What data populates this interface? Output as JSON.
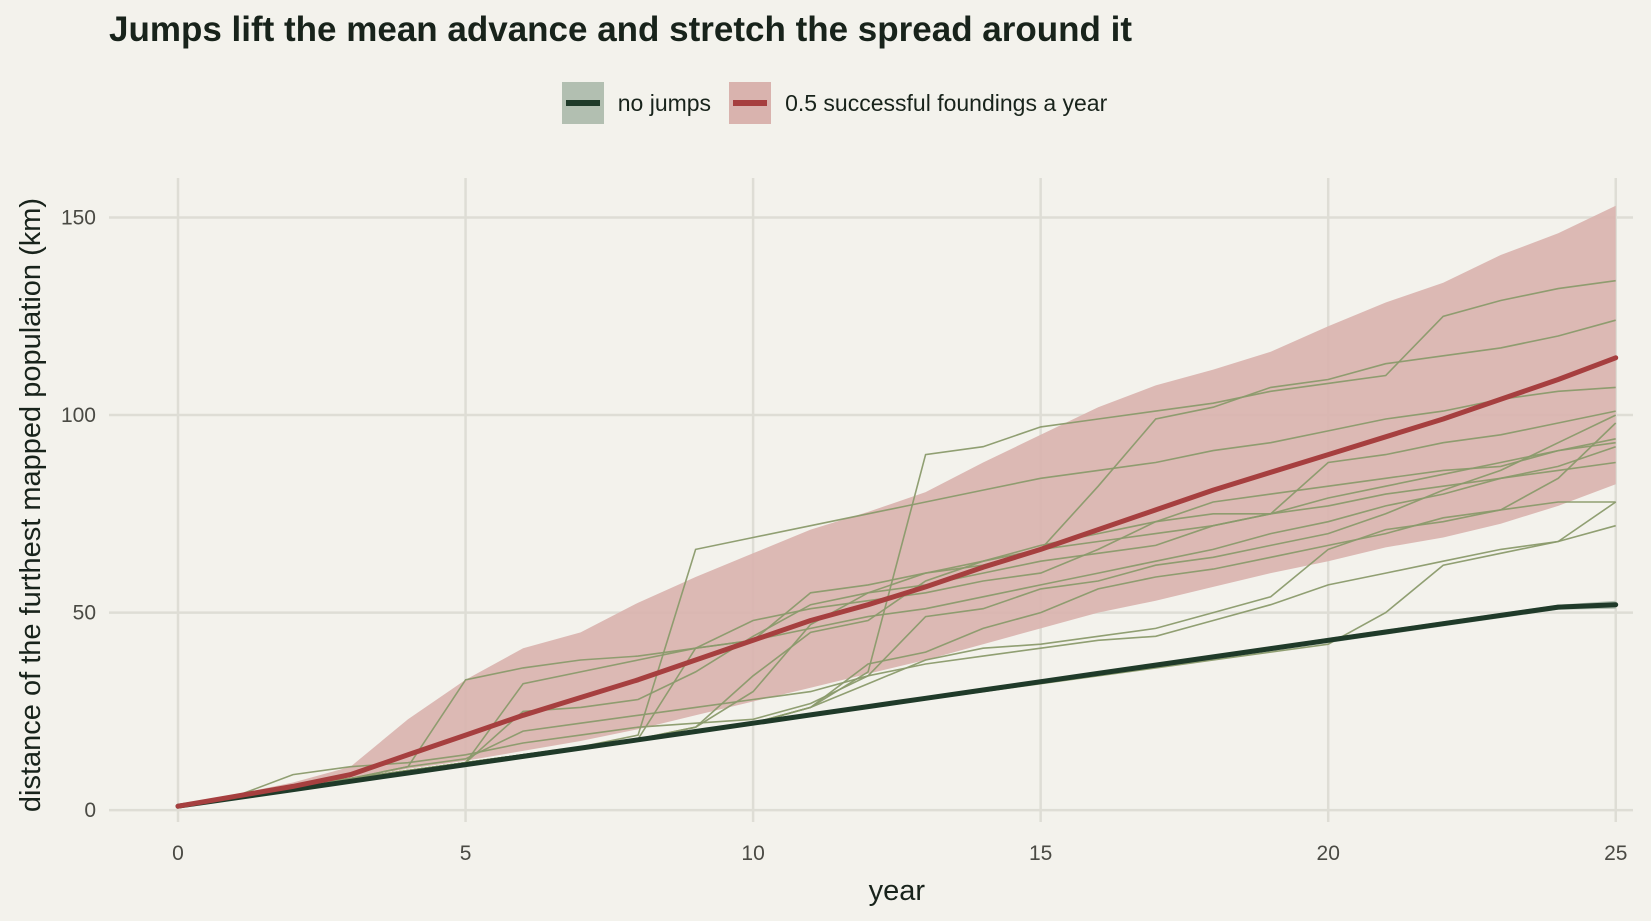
{
  "chart_data": {
    "type": "line",
    "title": "Jumps lift the mean advance and stretch the spread around it",
    "xlabel": "year",
    "ylabel": "distance of the furthest mapped population (km)",
    "xlim": [
      -1.2,
      25.3
    ],
    "ylim": [
      -3,
      160
    ],
    "xticks": [
      "0",
      "5",
      "10",
      "15",
      "20",
      "25"
    ],
    "yticks": [
      "0",
      "50",
      "100",
      "150"
    ],
    "grid": true,
    "legend_position": "top-center",
    "colors": {
      "background": "#f3f2ec",
      "grid": "#deddd5",
      "no_jumps": "#1f3a29",
      "no_jumps_band": "#b2bfb1",
      "jumps": "#a63f3f",
      "jumps_band": "#d9b3ae",
      "runs": "#8a9a6c",
      "text": "#18231b",
      "tick_text": "#4a4a44"
    },
    "legend": [
      {
        "label": "no jumps",
        "color": "#1f3a29",
        "band_color": "#b2bfb1"
      },
      {
        "label": "0.5 successful foundings a year",
        "color": "#a63f3f",
        "band_color": "#d9b3ae"
      }
    ],
    "series": [
      {
        "name": "no jumps",
        "x": [
          0,
          1,
          2,
          3,
          4,
          5,
          6,
          7,
          8,
          9,
          10,
          11,
          12,
          13,
          14,
          15,
          16,
          17,
          18,
          19,
          20,
          21,
          22,
          23,
          24,
          25
        ],
        "values": [
          1,
          3.1,
          5.2,
          7.3,
          9.4,
          11.5,
          13.6,
          15.7,
          17.8,
          19.9,
          22,
          24.1,
          26.2,
          28.3,
          30.4,
          32.5,
          34.6,
          36.7,
          38.8,
          40.9,
          43,
          45.1,
          47.2,
          49.3,
          51.4,
          52
        ],
        "band_low": [
          1,
          3,
          5,
          7,
          9,
          11,
          13.1,
          15.2,
          17.3,
          19.4,
          21.5,
          23.6,
          25.7,
          27.8,
          29.9,
          31.9,
          34,
          36.1,
          38.2,
          40.3,
          42.3,
          44.4,
          46.5,
          48.6,
          50.7,
          51
        ],
        "band_high": [
          1,
          3.2,
          5.4,
          7.6,
          9.8,
          12,
          14.1,
          16.2,
          18.3,
          20.4,
          22.5,
          24.6,
          26.7,
          28.8,
          30.9,
          33,
          35.1,
          37.2,
          39.3,
          41.4,
          43.6,
          45.7,
          47.8,
          49.9,
          52,
          53
        ]
      },
      {
        "name": "0.5 successful foundings a year",
        "x": [
          0,
          1,
          2,
          3,
          4,
          5,
          6,
          7,
          8,
          9,
          10,
          11,
          12,
          13,
          14,
          15,
          16,
          17,
          18,
          19,
          20,
          21,
          22,
          23,
          24,
          25
        ],
        "values": [
          1,
          3.5,
          6,
          9,
          14,
          19,
          24,
          28.5,
          33,
          38,
          43,
          48,
          52,
          56.5,
          61.5,
          66,
          71,
          76,
          81,
          85.5,
          90,
          94.5,
          99,
          104,
          109,
          114.5
        ],
        "band_low": [
          1,
          3.2,
          5.5,
          8,
          10.5,
          12.5,
          15,
          17.5,
          20.5,
          24,
          27.5,
          31,
          34.5,
          38,
          42,
          46,
          50,
          53,
          56.5,
          60,
          63,
          66.5,
          69,
          72.5,
          77,
          82.5
        ],
        "band_high": [
          1,
          4,
          7,
          11,
          23,
          33,
          41,
          45,
          52.5,
          59,
          65,
          71,
          75.5,
          80.5,
          88,
          95,
          102,
          107.5,
          111.5,
          116,
          122.5,
          128.5,
          133.5,
          140.5,
          146,
          153
        ]
      }
    ],
    "runs": [
      [
        1,
        3.5,
        9,
        11,
        12,
        14,
        17,
        19,
        21,
        22,
        23,
        27,
        34,
        49,
        51,
        56,
        58,
        62,
        64,
        67,
        70,
        75,
        81,
        86,
        93,
        100
      ],
      [
        1,
        3.5,
        6,
        8,
        11,
        33,
        36,
        38,
        39,
        41,
        43,
        46,
        49,
        51,
        54,
        57,
        60,
        63,
        66,
        70,
        73,
        77,
        80,
        84,
        87,
        92
      ],
      [
        1,
        3.5,
        6,
        8,
        11,
        13,
        20,
        22,
        24,
        26,
        28,
        30,
        34,
        37,
        39,
        41,
        43,
        44,
        48,
        52,
        57,
        60,
        63,
        66,
        68,
        78
      ],
      [
        1,
        3.5,
        6,
        8,
        10,
        12,
        14,
        16,
        19,
        66,
        69,
        72,
        75,
        78,
        81,
        84,
        86,
        88,
        91,
        93,
        96,
        99,
        101,
        104,
        106,
        107
      ],
      [
        1,
        3.5,
        6,
        8,
        10,
        12,
        14,
        16,
        18,
        20,
        22,
        26,
        35,
        90,
        92,
        97,
        99,
        101,
        103,
        106,
        108,
        110,
        125,
        129,
        132,
        134
      ],
      [
        1,
        3.5,
        6,
        8,
        10,
        12,
        14,
        16,
        18,
        21,
        34,
        45,
        48,
        58,
        63,
        66,
        82,
        99,
        102,
        107,
        109,
        113,
        115,
        117,
        120,
        124
      ],
      [
        1,
        3.5,
        6,
        8,
        10,
        12,
        14,
        16,
        18,
        21,
        30,
        47,
        55,
        60,
        63,
        67,
        70,
        73,
        75,
        75,
        88,
        90,
        93,
        95,
        98,
        101
      ],
      [
        1,
        3.5,
        6,
        8,
        10,
        12,
        14,
        16,
        18,
        41,
        43,
        55,
        57,
        60,
        62,
        66,
        68,
        70,
        72,
        75,
        77,
        80,
        82,
        84,
        86,
        88
      ],
      [
        1,
        3.5,
        6,
        8,
        10,
        12,
        14,
        16,
        18,
        20,
        22,
        26,
        32,
        38,
        41,
        42,
        44,
        46,
        50,
        54,
        66,
        71,
        73,
        76,
        84,
        98
      ],
      [
        1,
        3.5,
        6,
        8,
        10,
        12,
        32,
        35,
        38,
        41,
        48,
        51,
        53,
        55,
        58,
        60,
        66,
        73,
        78,
        80,
        82,
        84,
        86,
        87,
        91,
        93
      ],
      [
        1,
        3.5,
        6,
        8,
        10,
        12,
        25,
        26,
        28,
        35,
        44,
        52,
        55,
        57,
        60,
        63,
        65,
        67,
        72,
        75,
        79,
        82,
        85,
        88,
        91,
        94
      ],
      [
        1,
        3.5,
        6,
        8,
        10,
        12,
        14,
        16,
        18,
        20,
        22,
        26,
        37,
        40,
        46,
        50,
        56,
        59,
        61,
        64,
        67,
        70,
        74,
        76,
        78,
        78
      ],
      [
        1,
        3.5,
        6,
        8,
        10,
        12,
        14,
        16,
        18,
        20,
        22,
        24,
        26,
        28,
        30,
        32,
        34,
        36,
        38,
        40,
        42,
        50,
        62,
        65,
        68,
        72
      ]
    ]
  }
}
